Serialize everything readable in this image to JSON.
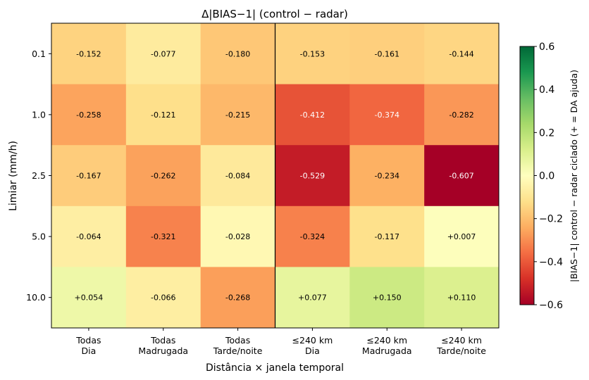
{
  "chart_data": {
    "type": "heatmap",
    "title": "Δ|BIAS−1|  (control − radar)",
    "xlabel": "Distância × janela temporal",
    "ylabel": "Limiar (mm/h)",
    "x_categories": [
      "Todas\nDia",
      "Todas\nMadrugada",
      "Todas\nTarde/noite",
      "≤240 km\nDia",
      "≤240 km\nMadrugada",
      "≤240 km\nTarde/noite"
    ],
    "y_categories": [
      "0.1",
      "1.0",
      "2.5",
      "5.0",
      "10.0"
    ],
    "values": [
      [
        -0.152,
        -0.077,
        -0.18,
        -0.153,
        -0.161,
        -0.144
      ],
      [
        -0.258,
        -0.121,
        -0.215,
        -0.412,
        -0.374,
        -0.282
      ],
      [
        -0.167,
        -0.262,
        -0.084,
        -0.529,
        -0.234,
        -0.607
      ],
      [
        -0.064,
        -0.321,
        -0.028,
        -0.324,
        -0.117,
        0.007
      ],
      [
        0.054,
        -0.066,
        -0.268,
        0.077,
        0.15,
        0.11
      ]
    ],
    "cell_labels": [
      [
        "-0.152",
        "-0.077",
        "-0.180",
        "-0.153",
        "-0.161",
        "-0.144"
      ],
      [
        "-0.258",
        "-0.121",
        "-0.215",
        "-0.412",
        "-0.374",
        "-0.282"
      ],
      [
        "-0.167",
        "-0.262",
        "-0.084",
        "-0.529",
        "-0.234",
        "-0.607"
      ],
      [
        "-0.064",
        "-0.321",
        "-0.028",
        "-0.324",
        "-0.117",
        "+0.007"
      ],
      [
        "+0.054",
        "-0.066",
        "-0.268",
        "+0.077",
        "+0.150",
        "+0.110"
      ]
    ],
    "colormap": "RdYlGn",
    "color_range": [
      -0.6,
      0.6
    ],
    "colorbar": {
      "label": "|BIAS−1| control − radar ciclado  (+ = DA ajuda)",
      "ticks": [
        "−0.6",
        "−0.4",
        "−0.2",
        "0.0",
        "0.2",
        "0.4",
        "0.6"
      ]
    },
    "divider_after_column": 3,
    "grid": false
  }
}
